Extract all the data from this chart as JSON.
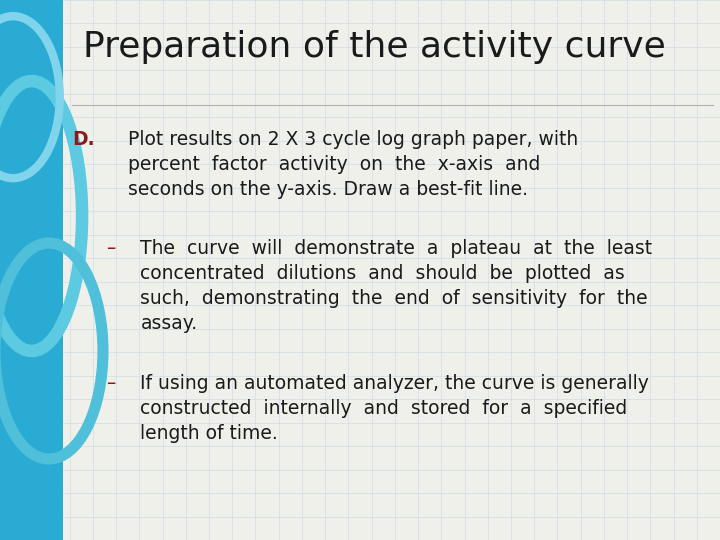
{
  "title": "Preparation of the activity curve",
  "title_color": "#1a1a1a",
  "title_fontsize": 26,
  "background_color": "#f0f0eb",
  "left_bar_color": "#29ABD4",
  "grid_color": "#d0dce8",
  "d_label": "D.",
  "d_label_color": "#8B1A1A",
  "d_text": "Plot results on 2 X 3 cycle log graph paper, with\npercent  factor  activity  on  the  x-axis  and\nseconds on the y-axis. Draw a best-fit line.",
  "bullet1_dash": "–",
  "bullet1_text": "The  curve  will  demonstrate  a  plateau  at  the  least\nconcentrated  dilutions  and  should  be  plotted  as\nsuch,  demonstrating  the  end  of  sensitivity  for  the\nassay.",
  "bullet2_dash": "–",
  "bullet2_text": "If using an automated analyzer, the curve is generally\nconstructed  internally  and  stored  for  a  specified\nlength of time.",
  "bullet_color": "#8B1A1A",
  "body_color": "#1a1a1a",
  "body_fontsize": 13.5,
  "title_font": "DejaVu Sans",
  "body_font": "DejaVu Sans"
}
